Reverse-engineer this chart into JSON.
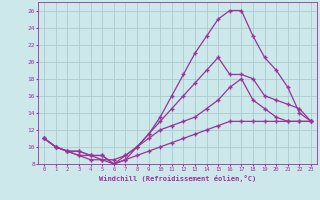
{
  "xlabel": "Windchill (Refroidissement éolien,°C)",
  "bg_color": "#cce8ea",
  "grid_color": "#aacccc",
  "line_color": "#993399",
  "marker": "+",
  "xlim": [
    -0.5,
    23.5
  ],
  "ylim": [
    8,
    27
  ],
  "yticks": [
    8,
    10,
    12,
    14,
    16,
    18,
    20,
    22,
    24,
    26
  ],
  "xticks": [
    0,
    1,
    2,
    3,
    4,
    5,
    6,
    7,
    8,
    9,
    10,
    11,
    12,
    13,
    14,
    15,
    16,
    17,
    18,
    19,
    20,
    21,
    22,
    23
  ],
  "line1_x": [
    0,
    1,
    2,
    3,
    4,
    5,
    6,
    7,
    8,
    9,
    10,
    11,
    12,
    13,
    14,
    15,
    16,
    17,
    18,
    19,
    20,
    21,
    22,
    23
  ],
  "line1_y": [
    11,
    10,
    9.5,
    9.5,
    9,
    9,
    8,
    8.5,
    9,
    9.5,
    10,
    10.5,
    11,
    11.5,
    12,
    12.5,
    13,
    13,
    13,
    13,
    13,
    13,
    13,
    13
  ],
  "line2_x": [
    0,
    1,
    2,
    3,
    4,
    5,
    6,
    7,
    8,
    9,
    10,
    11,
    12,
    13,
    14,
    15,
    16,
    17,
    18,
    19,
    20,
    21,
    22,
    23
  ],
  "line2_y": [
    11,
    10,
    9.5,
    9.5,
    9,
    9,
    8,
    9,
    10,
    11,
    12,
    12.5,
    13,
    13.5,
    14.5,
    15.5,
    17,
    18,
    15.5,
    14.5,
    13.5,
    13,
    13,
    13
  ],
  "line3_x": [
    0,
    1,
    2,
    3,
    4,
    5,
    6,
    7,
    8,
    9,
    10,
    11,
    12,
    13,
    14,
    15,
    16,
    17,
    18,
    19,
    20,
    21,
    22,
    23
  ],
  "line3_y": [
    11,
    10,
    9.5,
    9,
    8.5,
    8.5,
    8.5,
    9,
    10,
    11.5,
    13,
    14.5,
    16,
    17.5,
    19,
    20.5,
    18.5,
    18.5,
    18,
    16,
    15.5,
    15,
    14.5,
    13
  ],
  "line4_x": [
    0,
    1,
    2,
    3,
    4,
    5,
    6,
    7,
    8,
    9,
    10,
    11,
    12,
    13,
    14,
    15,
    16,
    17,
    18,
    19,
    20,
    21,
    22,
    23
  ],
  "line4_y": [
    11,
    10,
    9.5,
    9,
    9,
    8.5,
    8,
    8.5,
    10,
    11.5,
    13.5,
    16,
    18.5,
    21,
    23,
    25,
    26,
    26,
    23,
    20.5,
    19,
    17,
    14,
    13
  ]
}
